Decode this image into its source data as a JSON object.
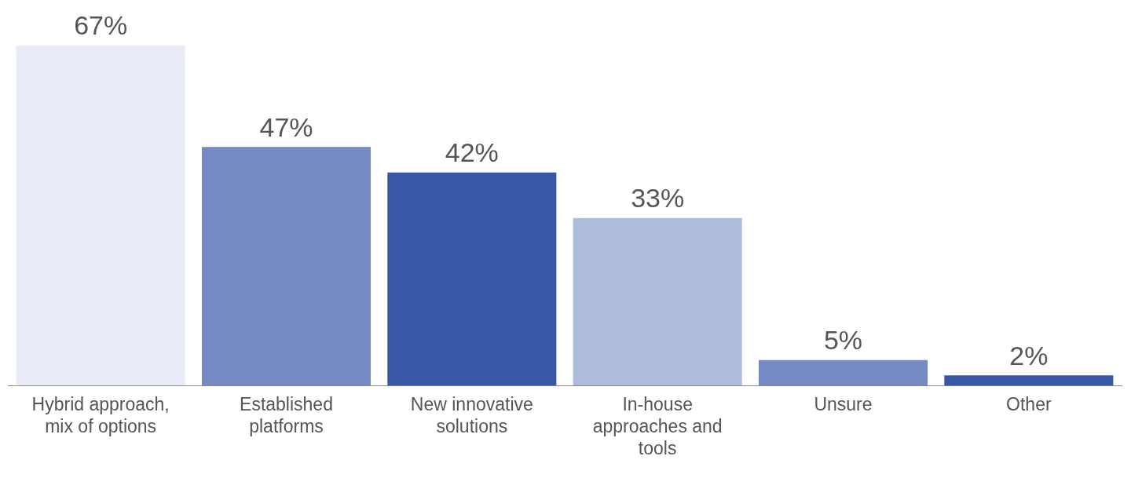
{
  "chart_data": {
    "type": "bar",
    "categories": [
      "Hybrid approach, mix of options",
      "Established platforms",
      "New innovative solutions",
      "In-house approaches and tools",
      "Unsure",
      "Other"
    ],
    "values": [
      67,
      47,
      42,
      33,
      5,
      2
    ],
    "colors": [
      "#e9ecf6",
      "#7589c2",
      "#3857a5",
      "#adbbdc",
      "#7589c2",
      "#3857a5"
    ],
    "value_labels": [
      "67%",
      "47%",
      "42%",
      "33%",
      "5%",
      "2%"
    ],
    "grid": false,
    "legend": false
  }
}
